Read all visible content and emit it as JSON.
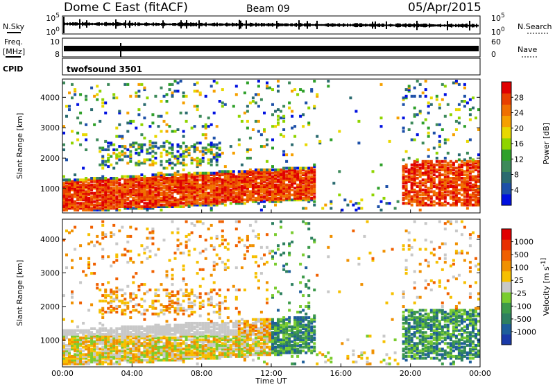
{
  "header": {
    "title": "Dome C East (fitACF)",
    "beam": "Beam 09",
    "date": "05/Apr/2015"
  },
  "aux_panels": {
    "nsky": {
      "label": "N.Sky",
      "ticks_left": [
        "10^5",
        "10^0"
      ],
      "right_label": "N.Search",
      "ticks_right": [
        "10^5",
        "10^0"
      ]
    },
    "freq": {
      "label_line1": "Freq.",
      "label_line2": "[MHz]",
      "ticks_left": [
        "10",
        "8"
      ],
      "right_label": "Nave",
      "ticks_right": [
        "60",
        "0"
      ]
    },
    "cpid": {
      "label": "CPID",
      "value": "twofsound 3501"
    }
  },
  "chart_data": [
    {
      "type": "heatmap",
      "panel": "power",
      "ylabel": "Slant Range [km]",
      "xlabel": "",
      "x_ticks": [
        "00:00",
        "04:00",
        "08:00",
        "12:00",
        "16:00",
        "20:00",
        "00:00"
      ],
      "y_ticks": [
        1000,
        2000,
        3000,
        4000
      ],
      "ylim": [
        200,
        4600
      ],
      "xlim_hours": [
        0,
        24
      ],
      "colorbar": {
        "label": "Power [dB]",
        "ticks": [
          "28",
          "24",
          "20",
          "16",
          "12",
          "8",
          "4"
        ],
        "colors": [
          "#0010e0",
          "#1d50a8",
          "#2b6b70",
          "#3d8a5a",
          "#2fa02a",
          "#8fd400",
          "#e8d800",
          "#f6a000",
          "#f07000",
          "#e84000",
          "#e00000"
        ]
      }
    },
    {
      "type": "heatmap",
      "panel": "velocity",
      "ylabel": "Slant Range [km]",
      "xlabel": "Time UT",
      "x_ticks": [
        "00:00",
        "04:00",
        "08:00",
        "12:00",
        "16:00",
        "20:00",
        "00:00"
      ],
      "y_ticks": [
        1000,
        2000,
        3000,
        4000
      ],
      "ylim": [
        200,
        4600
      ],
      "xlim_hours": [
        0,
        24
      ],
      "colorbar": {
        "label": "Velocity [m s^-1]",
        "ticks": [
          "1000",
          "500",
          "100",
          "25",
          "-25",
          "-100",
          "-500",
          "-1000"
        ],
        "colors": [
          "#1a3aa8",
          "#1e5e9a",
          "#2e8060",
          "#3d9a4a",
          "#7acc30",
          "#c8c8c8",
          "#f6c000",
          "#f09000",
          "#f06000",
          "#e83000",
          "#e00000"
        ]
      }
    }
  ]
}
